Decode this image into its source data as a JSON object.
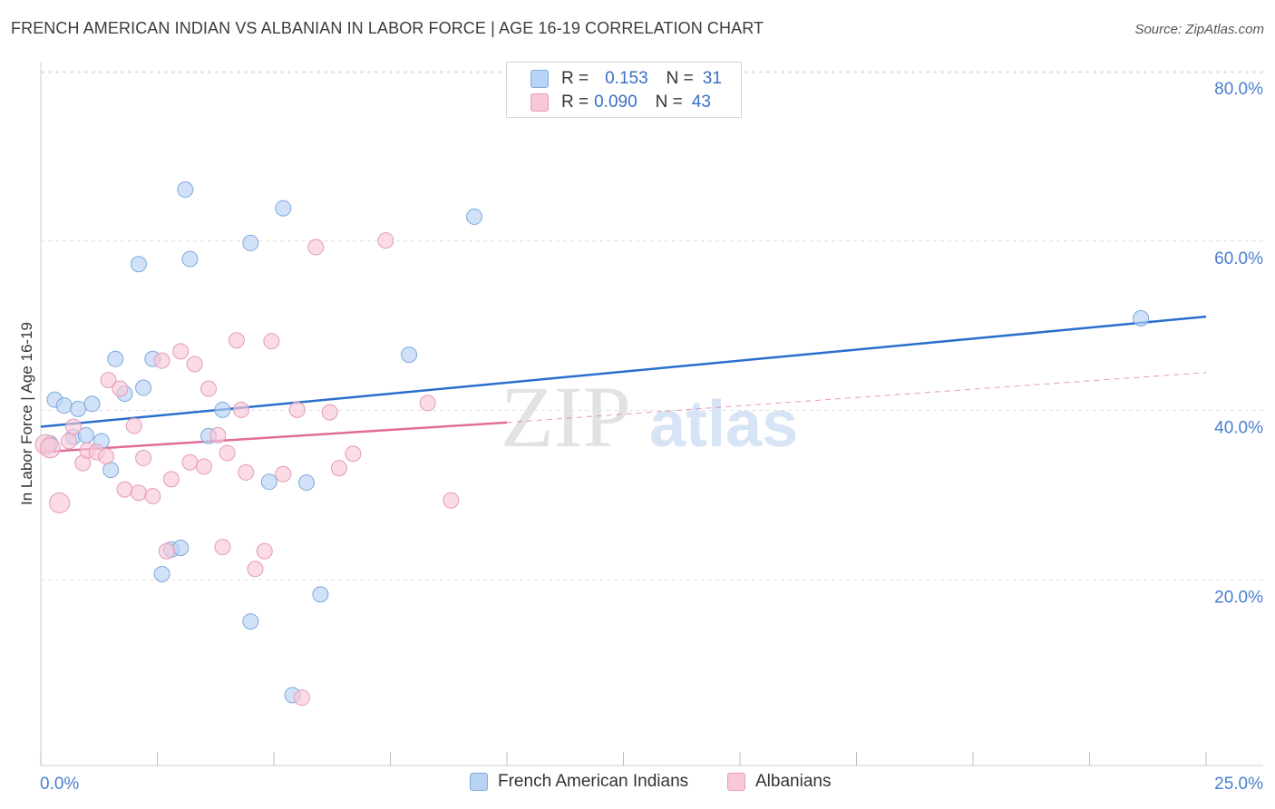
{
  "header": {
    "title": "FRENCH AMERICAN INDIAN VS ALBANIAN IN LABOR FORCE | AGE 16-19 CORRELATION CHART",
    "source": "Source: ZipAtlas.com"
  },
  "watermark": {
    "zip": "ZIP",
    "atlas": "atlas"
  },
  "legend_stats": {
    "r_label": "R =",
    "n_label": "N =",
    "rows": [
      {
        "r": "0.153",
        "n": "31"
      },
      {
        "r": "0.090",
        "n": "43"
      }
    ]
  },
  "colors": {
    "blue_fill": "#b9d3f4",
    "blue_stroke": "#7fa9dc",
    "blue_line": "#2a6fcd",
    "pink_fill": "#f8c8d8",
    "pink_stroke": "#e59bb6",
    "pink_line": "#e06c9a",
    "axis_text": "#4a7fcf",
    "grid": "#dedede"
  },
  "chart_data": {
    "type": "scatter",
    "title": "FRENCH AMERICAN INDIAN VS ALBANIAN IN LABOR FORCE | AGE 16-19 CORRELATION CHART",
    "xlabel": "",
    "ylabel": "In Labor Force | Age 16-19",
    "xlim": [
      0,
      25
    ],
    "ylim": [
      0,
      82
    ],
    "x_tick_labels": [
      "0.0%",
      "25.0%"
    ],
    "y_ticks": [
      20,
      40,
      60,
      80
    ],
    "y_tick_labels": [
      "20.0%",
      "40.0%",
      "60.0%",
      "80.0%"
    ],
    "grid": true,
    "legend_position": "bottom",
    "series": [
      {
        "name": "French American Indians",
        "color": "#b9d3f4",
        "points": [
          [
            0.3,
            43.2
          ],
          [
            0.5,
            42.5
          ],
          [
            0.8,
            42.1
          ],
          [
            1.1,
            42.7
          ],
          [
            0.7,
            38.8
          ],
          [
            0.97,
            39.0
          ],
          [
            1.3,
            38.3
          ],
          [
            1.5,
            34.9
          ],
          [
            1.6,
            48.0
          ],
          [
            1.8,
            43.9
          ],
          [
            2.1,
            59.2
          ],
          [
            2.2,
            44.6
          ],
          [
            2.4,
            48.0
          ],
          [
            2.6,
            22.6
          ],
          [
            2.8,
            25.5
          ],
          [
            3.0,
            25.7
          ],
          [
            3.1,
            68.0
          ],
          [
            3.2,
            59.8
          ],
          [
            3.9,
            42.0
          ],
          [
            3.6,
            38.9
          ],
          [
            4.5,
            17.0
          ],
          [
            4.5,
            61.7
          ],
          [
            4.9,
            33.5
          ],
          [
            5.2,
            65.8
          ],
          [
            5.4,
            8.3
          ],
          [
            5.7,
            33.4
          ],
          [
            6.0,
            20.2
          ],
          [
            7.9,
            48.5
          ],
          [
            9.3,
            64.8
          ],
          [
            23.6,
            52.8
          ],
          [
            0.2,
            38.0
          ]
        ]
      },
      {
        "name": "Albanians",
        "color": "#f8c8d8",
        "points": [
          [
            0.1,
            37.9
          ],
          [
            0.2,
            37.5
          ],
          [
            0.4,
            31.0
          ],
          [
            0.6,
            38.3
          ],
          [
            0.7,
            40.0
          ],
          [
            0.9,
            35.7
          ],
          [
            1.0,
            37.2
          ],
          [
            1.2,
            37.0
          ],
          [
            1.4,
            36.5
          ],
          [
            1.45,
            45.5
          ],
          [
            1.7,
            44.5
          ],
          [
            1.8,
            32.6
          ],
          [
            2.0,
            40.1
          ],
          [
            2.1,
            32.2
          ],
          [
            2.2,
            36.3
          ],
          [
            2.4,
            31.8
          ],
          [
            2.6,
            47.8
          ],
          [
            2.7,
            25.3
          ],
          [
            2.8,
            33.8
          ],
          [
            3.0,
            48.9
          ],
          [
            3.2,
            35.8
          ],
          [
            3.3,
            47.4
          ],
          [
            3.5,
            35.3
          ],
          [
            3.6,
            44.5
          ],
          [
            3.8,
            39.0
          ],
          [
            3.9,
            25.8
          ],
          [
            4.0,
            36.9
          ],
          [
            4.2,
            50.2
          ],
          [
            4.3,
            42.0
          ],
          [
            4.4,
            34.6
          ],
          [
            4.6,
            23.2
          ],
          [
            4.8,
            25.3
          ],
          [
            4.95,
            50.1
          ],
          [
            5.2,
            34.4
          ],
          [
            5.5,
            42.0
          ],
          [
            5.6,
            8.0
          ],
          [
            5.9,
            61.2
          ],
          [
            6.2,
            41.7
          ],
          [
            6.4,
            35.1
          ],
          [
            6.7,
            36.8
          ],
          [
            7.4,
            62.0
          ],
          [
            8.3,
            42.8
          ],
          [
            8.8,
            31.3
          ]
        ]
      }
    ],
    "trendlines": [
      {
        "series": "French American Indians",
        "from": [
          0,
          40.0
        ],
        "to": [
          25,
          53.0
        ],
        "style": "solid"
      },
      {
        "series": "Albanians",
        "from": [
          0,
          37.0
        ],
        "to": [
          10,
          40.5
        ],
        "style": "solid"
      },
      {
        "series": "Albanians",
        "from": [
          10,
          40.5
        ],
        "to": [
          25,
          46.4
        ],
        "style": "dashed"
      }
    ]
  }
}
